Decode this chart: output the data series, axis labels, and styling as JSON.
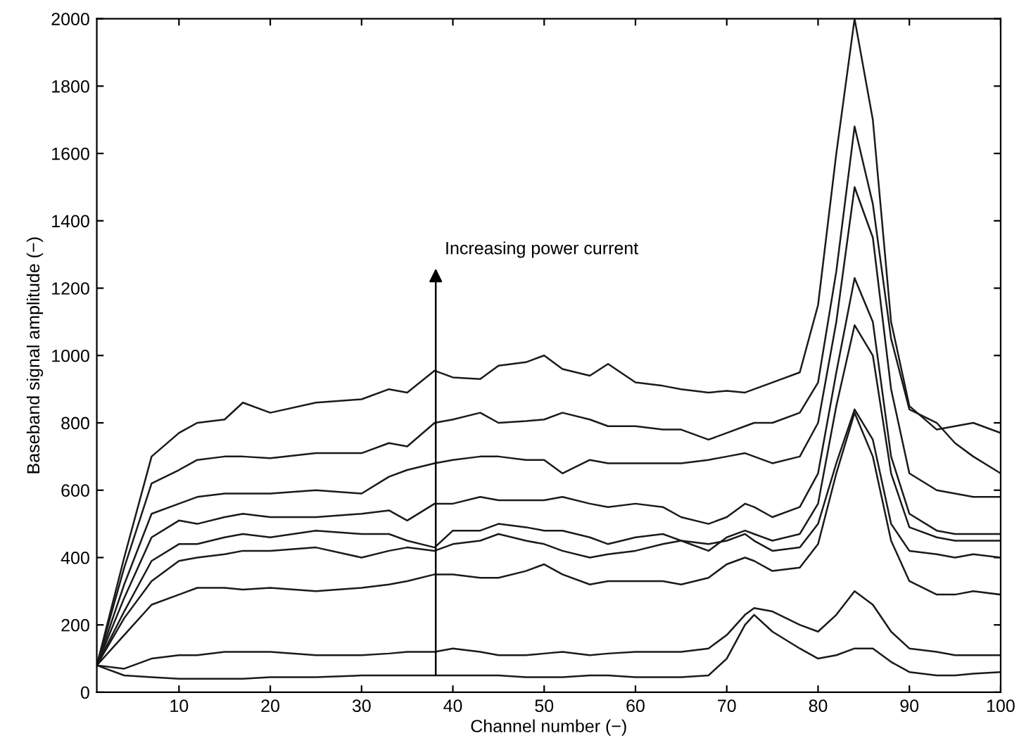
{
  "chart_data": {
    "type": "line",
    "xlabel": "Channel number (−)",
    "ylabel": "Baseband signal amplitude (−)",
    "x": [
      1,
      4,
      7,
      10,
      12,
      15,
      17,
      20,
      25,
      30,
      33,
      35,
      38,
      40,
      43,
      45,
      48,
      50,
      52,
      55,
      57,
      60,
      63,
      65,
      68,
      70,
      72,
      73,
      75,
      78,
      80,
      82,
      84,
      86,
      88,
      90,
      93,
      95,
      97,
      100
    ],
    "series": [
      {
        "color": "#1a1a1a",
        "values": [
          80,
          50,
          45,
          40,
          40,
          40,
          40,
          45,
          45,
          50,
          50,
          50,
          50,
          50,
          50,
          50,
          45,
          45,
          45,
          50,
          50,
          45,
          45,
          45,
          50,
          100,
          200,
          230,
          180,
          130,
          100,
          110,
          130,
          130,
          90,
          60,
          50,
          50,
          55,
          60
        ]
      },
      {
        "color": "#1a1a1a",
        "values": [
          80,
          70,
          100,
          110,
          110,
          120,
          120,
          120,
          110,
          110,
          115,
          120,
          120,
          130,
          120,
          110,
          110,
          115,
          120,
          110,
          115,
          120,
          120,
          120,
          130,
          170,
          230,
          250,
          240,
          200,
          180,
          230,
          300,
          260,
          180,
          130,
          120,
          110,
          110,
          110
        ]
      },
      {
        "color": "#1a1a1a",
        "values": [
          80,
          170,
          260,
          290,
          310,
          310,
          305,
          310,
          300,
          310,
          320,
          330,
          350,
          350,
          340,
          340,
          360,
          380,
          350,
          320,
          330,
          330,
          330,
          320,
          340,
          380,
          400,
          390,
          360,
          370,
          440,
          650,
          830,
          700,
          450,
          330,
          290,
          290,
          300,
          290
        ]
      },
      {
        "color": "#1a1a1a",
        "values": [
          80,
          220,
          330,
          390,
          400,
          410,
          420,
          420,
          430,
          400,
          420,
          430,
          420,
          440,
          450,
          470,
          450,
          440,
          420,
          400,
          410,
          420,
          440,
          450,
          440,
          450,
          470,
          450,
          420,
          430,
          500,
          680,
          840,
          750,
          500,
          420,
          410,
          400,
          410,
          400
        ]
      },
      {
        "color": "#1a1a1a",
        "values": [
          80,
          240,
          390,
          440,
          440,
          460,
          470,
          460,
          480,
          470,
          470,
          450,
          430,
          480,
          480,
          500,
          490,
          480,
          480,
          460,
          440,
          460,
          470,
          450,
          420,
          460,
          480,
          470,
          450,
          470,
          560,
          850,
          1090,
          1000,
          650,
          490,
          460,
          450,
          450,
          450
        ]
      },
      {
        "color": "#1a1a1a",
        "values": [
          80,
          280,
          460,
          510,
          500,
          520,
          530,
          520,
          520,
          530,
          540,
          510,
          560,
          560,
          580,
          570,
          570,
          570,
          580,
          560,
          550,
          560,
          550,
          520,
          500,
          520,
          560,
          550,
          520,
          550,
          650,
          950,
          1230,
          1100,
          700,
          530,
          480,
          470,
          470,
          470
        ]
      },
      {
        "color": "#1a1a1a",
        "values": [
          80,
          320,
          530,
          560,
          580,
          590,
          590,
          590,
          600,
          590,
          640,
          660,
          680,
          690,
          700,
          700,
          690,
          690,
          650,
          690,
          680,
          680,
          680,
          680,
          690,
          700,
          710,
          700,
          680,
          700,
          800,
          1100,
          1500,
          1350,
          900,
          650,
          600,
          590,
          580,
          580
        ]
      },
      {
        "color": "#1a1a1a",
        "values": [
          80,
          370,
          620,
          660,
          690,
          700,
          700,
          695,
          710,
          710,
          740,
          730,
          800,
          810,
          830,
          800,
          805,
          810,
          830,
          810,
          790,
          790,
          780,
          780,
          750,
          770,
          790,
          800,
          800,
          830,
          920,
          1250,
          1680,
          1450,
          1050,
          840,
          800,
          740,
          700,
          650
        ]
      },
      {
        "color": "#1a1a1a",
        "values": [
          80,
          400,
          700,
          770,
          800,
          810,
          860,
          830,
          860,
          870,
          900,
          890,
          955,
          935,
          930,
          970,
          980,
          1000,
          960,
          940,
          975,
          920,
          910,
          900,
          890,
          895,
          890,
          900,
          920,
          950,
          1150,
          1600,
          2000,
          1700,
          1100,
          850,
          780,
          790,
          800,
          770
        ]
      }
    ],
    "xlim": [
      1,
      100
    ],
    "xticks": [
      10,
      20,
      30,
      40,
      50,
      60,
      70,
      80,
      90,
      100
    ],
    "ylim": [
      0,
      2000
    ],
    "yticks": [
      0,
      200,
      400,
      600,
      800,
      1000,
      1200,
      1400,
      1600,
      1800,
      2000
    ],
    "grid": false,
    "legend": false,
    "marker": "none",
    "line_style": "solid",
    "annotations": [
      "Increasing power current"
    ]
  }
}
